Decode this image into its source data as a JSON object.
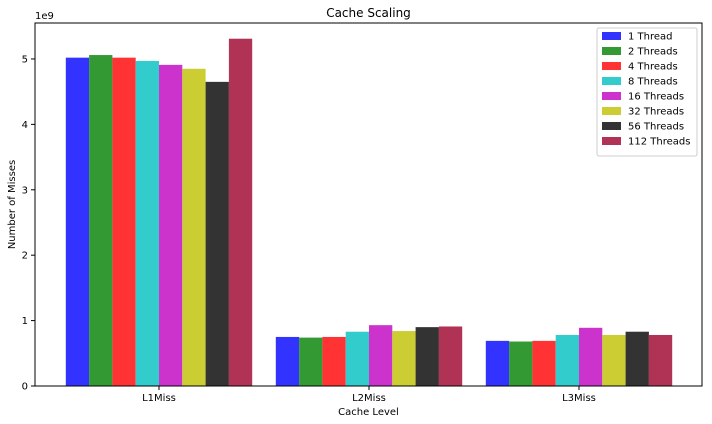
{
  "chart_data": {
    "type": "bar",
    "title": "Cache Scaling",
    "xlabel": "Cache Level",
    "ylabel": "Number of Misses",
    "y_offset_label": "1e9",
    "y_scale": 1000000000,
    "ylim": [
      0,
      5.55
    ],
    "yticks": [
      0,
      1,
      2,
      3,
      4,
      5
    ],
    "categories": [
      "L1Miss",
      "L2Miss",
      "L3Miss"
    ],
    "series": [
      {
        "name": "1 Thread",
        "color": "#3333ff",
        "values": [
          5.02,
          0.75,
          0.69
        ]
      },
      {
        "name": "2 Threads",
        "color": "#339933",
        "values": [
          5.06,
          0.74,
          0.68
        ]
      },
      {
        "name": "4 Threads",
        "color": "#ff3333",
        "values": [
          5.02,
          0.75,
          0.69
        ]
      },
      {
        "name": "8 Threads",
        "color": "#33cccc",
        "values": [
          4.97,
          0.83,
          0.78
        ]
      },
      {
        "name": "16 Threads",
        "color": "#cc33cc",
        "values": [
          4.91,
          0.93,
          0.89
        ]
      },
      {
        "name": "32 Threads",
        "color": "#cccc33",
        "values": [
          4.85,
          0.84,
          0.78
        ]
      },
      {
        "name": "56 Threads",
        "color": "#333333",
        "values": [
          4.65,
          0.9,
          0.83
        ]
      },
      {
        "name": "112 Threads",
        "color": "#b03355",
        "values": [
          5.31,
          0.91,
          0.78
        ]
      }
    ],
    "grid": false,
    "legend_position": "top-right"
  }
}
